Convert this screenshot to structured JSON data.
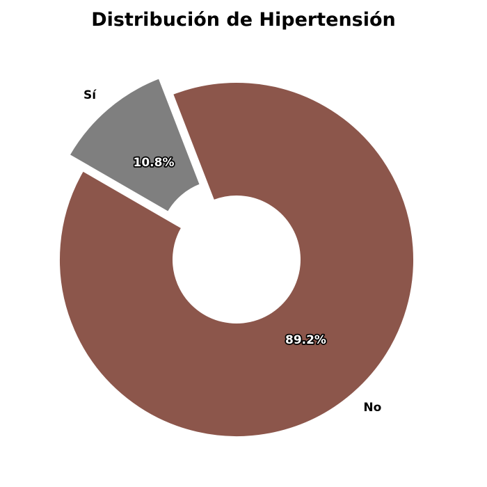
{
  "chart_data": {
    "type": "pie",
    "title": "Distribución de Hipertensión",
    "categories": [
      "No",
      "Sí"
    ],
    "values": [
      89.2,
      10.8
    ],
    "value_labels": [
      "89.2%",
      "10.8%"
    ],
    "colors": [
      "#8c564b",
      "#7f7f7f"
    ],
    "donut": true,
    "exploded": [
      "Sí"
    ],
    "legend": "none"
  }
}
